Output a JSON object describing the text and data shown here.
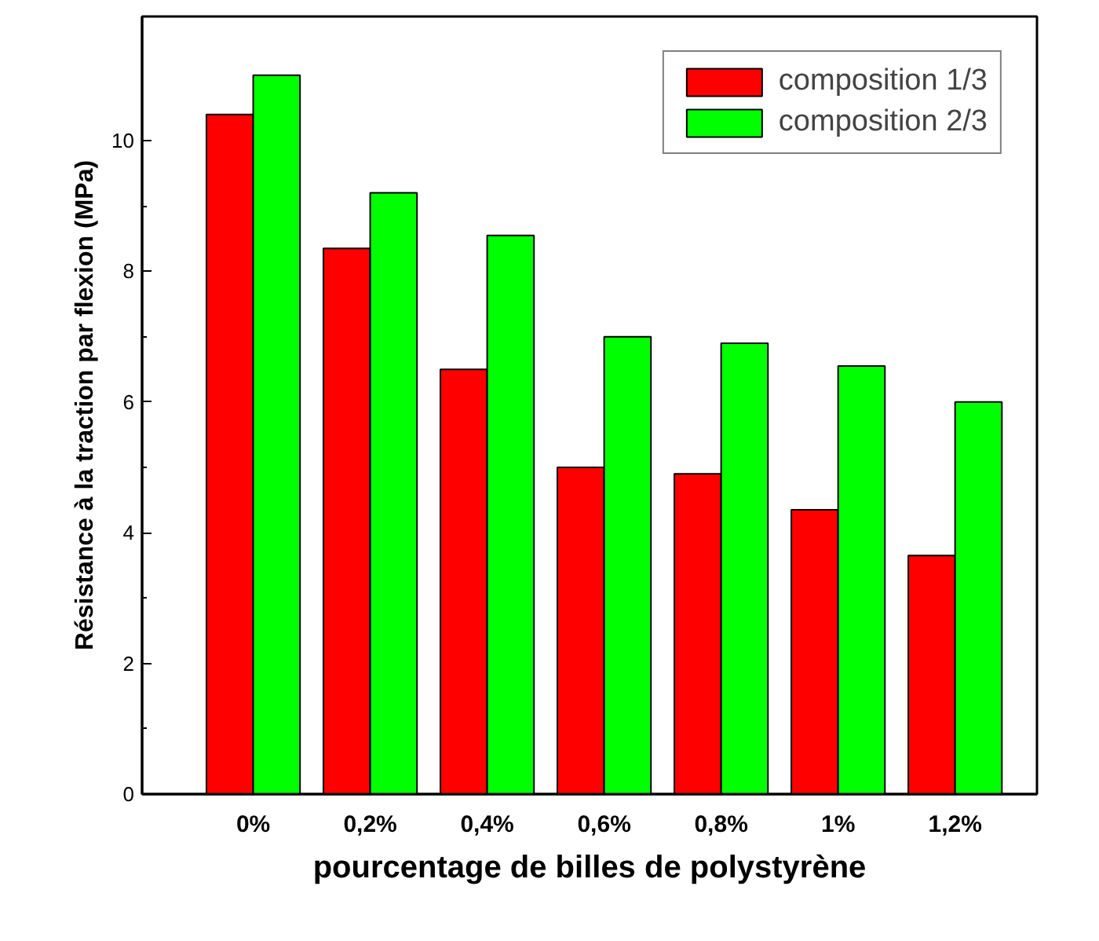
{
  "chart_data": {
    "type": "bar",
    "xlabel": "pourcentage de billes de polystyrène",
    "ylabel": "Résistance à la traction par flexion (MPa)",
    "categories": [
      "0%",
      "0,2%",
      "0,4%",
      "0,6%",
      "0,8%",
      "1%",
      "1,2%"
    ],
    "series": [
      {
        "name": "composition 1/3",
        "color": "#ff0000",
        "values": [
          10.4,
          8.35,
          6.5,
          5.0,
          4.9,
          4.35,
          3.65
        ]
      },
      {
        "name": "composition 2/3",
        "color": "#00ff00",
        "values": [
          11.0,
          9.2,
          8.55,
          7.0,
          6.9,
          6.55,
          6.0
        ]
      }
    ],
    "ylim": [
      0,
      11.9
    ],
    "yticks": [
      0,
      2,
      4,
      6,
      8,
      10
    ],
    "grid": false,
    "legend": "top right"
  }
}
